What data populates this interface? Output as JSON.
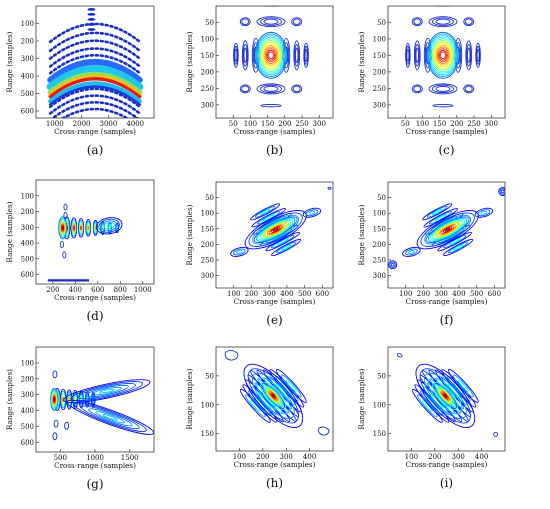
{
  "figure": {
    "panels": [
      {
        "caption": "(a)",
        "xlabel": "Cross-range (samples)",
        "ylabel": "Range (samples)",
        "xticks": [
          1000,
          2000,
          3000,
          4000
        ],
        "yticks": [
          100,
          200,
          300,
          400,
          500,
          600
        ]
      },
      {
        "caption": "(b)",
        "xlabel": "Cross-range (samples)",
        "ylabel": "Range (samples)",
        "xticks": [
          50,
          100,
          150,
          200,
          250,
          300
        ],
        "yticks": [
          50,
          100,
          150,
          200,
          250,
          300
        ]
      },
      {
        "caption": "(c)",
        "xlabel": "Cross-range (samples)",
        "ylabel": "Range (samples)",
        "xticks": [
          50,
          100,
          150,
          200,
          250,
          300
        ],
        "yticks": [
          50,
          100,
          150,
          200,
          250,
          300
        ]
      },
      {
        "caption": "(d)",
        "xlabel": "Cross-range (samples)",
        "ylabel": "Range (samples)",
        "xticks": [
          200,
          400,
          600,
          800,
          1000
        ],
        "yticks": [
          100,
          200,
          300,
          400,
          500,
          600
        ]
      },
      {
        "caption": "(e)",
        "xlabel": "Cross-range (samples)",
        "ylabel": "Range (samples)",
        "xticks": [
          100,
          200,
          300,
          400,
          500,
          600
        ],
        "yticks": [
          50,
          100,
          150,
          200,
          250,
          300
        ]
      },
      {
        "caption": "(f)",
        "xlabel": "Cross-range (samples)",
        "ylabel": "Range (samples)",
        "xticks": [
          100,
          200,
          300,
          400,
          500,
          600
        ],
        "yticks": [
          50,
          100,
          150,
          200,
          250,
          300
        ]
      },
      {
        "caption": "(g)",
        "xlabel": "Cross-range (samples)",
        "ylabel": "Range (samples)",
        "xticks": [
          500,
          1000,
          1500
        ],
        "yticks": [
          100,
          200,
          300,
          400,
          500,
          600
        ]
      },
      {
        "caption": "(h)",
        "xlabel": "Cross-range (samples)",
        "ylabel": "Range (samples)",
        "xticks": [
          100,
          200,
          300,
          400
        ],
        "yticks": [
          50,
          100,
          150
        ]
      },
      {
        "caption": "(i)",
        "xlabel": "Cross-range (samples)",
        "ylabel": "Range (samples)",
        "xticks": [
          100,
          200,
          300,
          400
        ],
        "yticks": [
          50,
          100,
          150
        ]
      }
    ]
  }
}
